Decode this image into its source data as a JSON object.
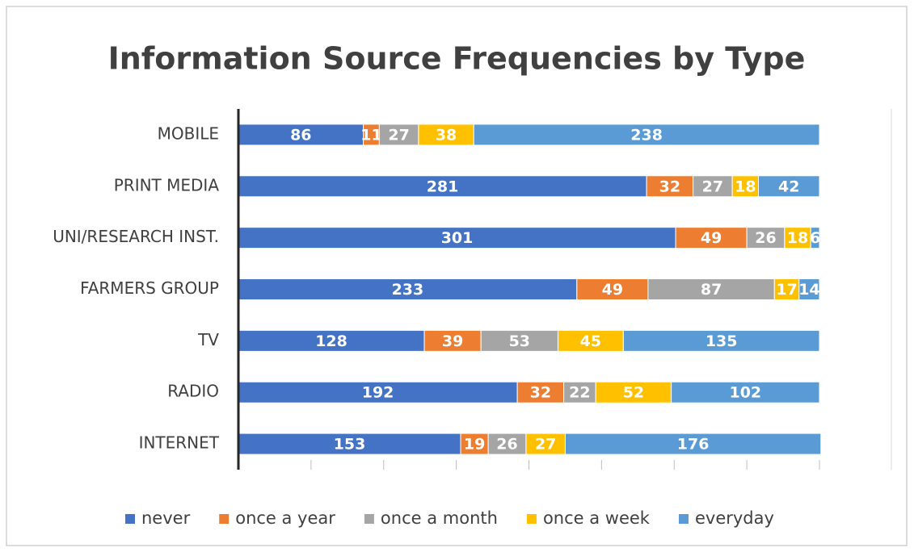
{
  "chart_data": {
    "type": "stacked-bar-horizontal",
    "title": "Information Source Frequencies by Type",
    "categories": [
      "MOBILE",
      "PRINT MEDIA",
      "UNI/RESEARCH INST.",
      "FARMERS GROUP",
      "TV",
      "RADIO",
      "INTERNET"
    ],
    "series": [
      {
        "name": "never",
        "color": "#4472c4",
        "values": [
          86,
          281,
          301,
          233,
          128,
          192,
          153
        ]
      },
      {
        "name": "once a year",
        "color": "#ed7d31",
        "values": [
          11,
          32,
          49,
          49,
          39,
          32,
          19
        ]
      },
      {
        "name": "once a month",
        "color": "#a5a5a5",
        "values": [
          27,
          27,
          26,
          87,
          53,
          22,
          26
        ]
      },
      {
        "name": "once a week",
        "color": "#ffc000",
        "values": [
          38,
          18,
          18,
          17,
          45,
          52,
          27
        ]
      },
      {
        "name": "everyday",
        "color": "#5b9bd5",
        "values": [
          238,
          42,
          6,
          14,
          135,
          102,
          176
        ]
      }
    ],
    "xlim": [
      0,
      400
    ],
    "xticks": [
      0,
      50,
      100,
      150,
      200,
      250,
      300,
      350,
      400
    ],
    "legend": "bottom"
  }
}
